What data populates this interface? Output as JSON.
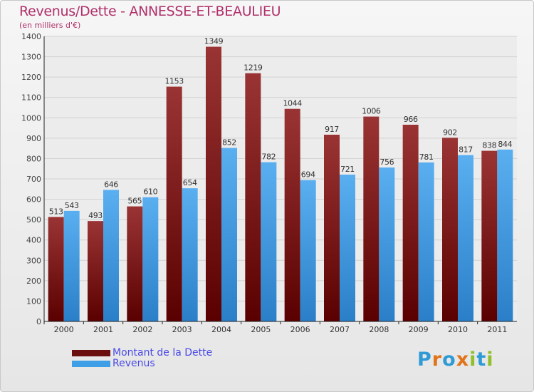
{
  "header": {
    "title": "Revenus/Dette - ANNESSE-ET-BEAULIEU",
    "subtitle": "(en milliers d'€)"
  },
  "legend": {
    "items": [
      {
        "label": "Montant de la Dette",
        "color": "#7a1a1a"
      },
      {
        "label": "Revenus",
        "color": "#3e9ee6"
      }
    ]
  },
  "logo": {
    "letters": [
      "P",
      "r",
      "o",
      "x",
      "i",
      "t",
      "i"
    ],
    "colors": [
      "#2f9bd6",
      "#e2741a",
      "#2f9bd6",
      "#e2741a",
      "#8fbf2a",
      "#2f9bd6",
      "#8fbf2a"
    ]
  },
  "chart_data": {
    "type": "bar",
    "title": "Revenus/Dette - ANNESSE-ET-BEAULIEU",
    "ylabel": "(en milliers d'€)",
    "xlabel": "",
    "categories": [
      "2000",
      "2001",
      "2002",
      "2003",
      "2004",
      "2005",
      "2006",
      "2007",
      "2008",
      "2009",
      "2010",
      "2011"
    ],
    "series": [
      {
        "name": "Montant de la Dette",
        "color": "#7a1a1a",
        "values": [
          513,
          493,
          565,
          1153,
          1349,
          1219,
          1044,
          917,
          1006,
          966,
          902,
          838
        ]
      },
      {
        "name": "Revenus",
        "color": "#3e9ee6",
        "values": [
          543,
          646,
          610,
          654,
          852,
          782,
          694,
          721,
          756,
          781,
          817,
          844
        ]
      }
    ],
    "ylim": [
      0,
      1400
    ],
    "yticks": [
      0,
      100,
      200,
      300,
      400,
      500,
      600,
      700,
      800,
      900,
      1000,
      1100,
      1200,
      1300,
      1400
    ],
    "grid": true,
    "legend": "bottom-left"
  }
}
